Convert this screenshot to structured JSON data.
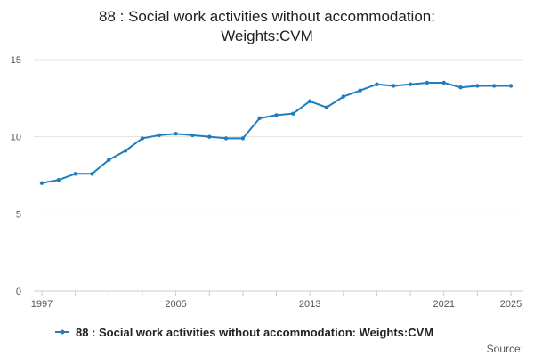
{
  "chart_data": {
    "type": "line",
    "title_lines": [
      "88 : Social work activities without accommodation:",
      "Weights:CVM"
    ],
    "x": [
      1997,
      1998,
      1999,
      2000,
      2001,
      2002,
      2003,
      2004,
      2005,
      2006,
      2007,
      2008,
      2009,
      2010,
      2011,
      2012,
      2013,
      2014,
      2015,
      2016,
      2017,
      2018,
      2019,
      2020,
      2021,
      2022,
      2023,
      2024,
      2025
    ],
    "series": [
      {
        "name": "88 : Social work activities without accommodation: Weights:CVM",
        "color": "#1f7dbf",
        "values": [
          7.0,
          7.2,
          7.6,
          7.6,
          8.5,
          9.1,
          9.9,
          10.1,
          10.2,
          10.1,
          10.0,
          9.9,
          9.9,
          11.2,
          11.4,
          11.5,
          12.3,
          11.9,
          12.6,
          13.0,
          13.4,
          13.3,
          13.4,
          13.5,
          13.5,
          13.2,
          13.3,
          13.3,
          13.3
        ]
      }
    ],
    "x_tick_labels": [
      "1997",
      "2005",
      "2013",
      "2021",
      "2025"
    ],
    "y_ticks": [
      0,
      5,
      10,
      15
    ],
    "ylim": [
      0,
      15
    ],
    "xlim": [
      1997,
      2025
    ],
    "grid": true,
    "legend_position": "bottom",
    "source_label": "Source:"
  }
}
